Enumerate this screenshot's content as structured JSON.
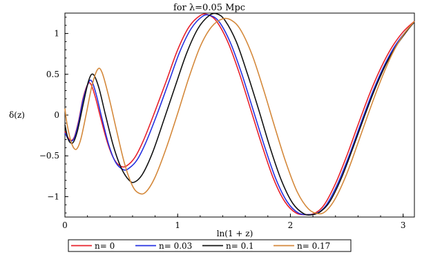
{
  "chart_data": {
    "type": "line",
    "title": "for λ=0.05 Mpc",
    "xlabel": "ln(1 + z)",
    "ylabel": "δ(z)",
    "xlim": [
      0,
      3.1
    ],
    "ylim": [
      -1.25,
      1.25
    ],
    "x_ticks": [
      0,
      1,
      2,
      3
    ],
    "y_ticks": [
      -1,
      -0.5,
      0,
      0.5,
      1
    ],
    "x_tick_labels": [
      "0",
      "1",
      "2",
      "3"
    ],
    "y_tick_labels": [
      "−1",
      "−0.5",
      "0",
      "0.5",
      "1"
    ],
    "grid": false,
    "legend_position": "bottom",
    "series": [
      {
        "name": "n= 0",
        "color": "#e8202a",
        "points": [
          [
            0,
            -0.2
          ],
          [
            0.04,
            -0.3
          ],
          [
            0.08,
            -0.28
          ],
          [
            0.12,
            -0.08
          ],
          [
            0.16,
            0.2
          ],
          [
            0.2,
            0.37
          ],
          [
            0.23,
            0.38
          ],
          [
            0.27,
            0.22
          ],
          [
            0.32,
            -0.05
          ],
          [
            0.38,
            -0.35
          ],
          [
            0.44,
            -0.55
          ],
          [
            0.5,
            -0.63
          ],
          [
            0.55,
            -0.62
          ],
          [
            0.62,
            -0.52
          ],
          [
            0.7,
            -0.3
          ],
          [
            0.8,
            0.05
          ],
          [
            0.9,
            0.42
          ],
          [
            1.0,
            0.8
          ],
          [
            1.1,
            1.08
          ],
          [
            1.2,
            1.22
          ],
          [
            1.27,
            1.23
          ],
          [
            1.35,
            1.14
          ],
          [
            1.45,
            0.88
          ],
          [
            1.55,
            0.5
          ],
          [
            1.65,
            0.06
          ],
          [
            1.75,
            -0.38
          ],
          [
            1.85,
            -0.78
          ],
          [
            1.95,
            -1.06
          ],
          [
            2.05,
            -1.2
          ],
          [
            2.15,
            -1.22
          ],
          [
            2.22,
            -1.2
          ],
          [
            2.3,
            -1.1
          ],
          [
            2.4,
            -0.84
          ],
          [
            2.5,
            -0.5
          ],
          [
            2.6,
            -0.12
          ],
          [
            2.7,
            0.25
          ],
          [
            2.8,
            0.57
          ],
          [
            2.9,
            0.83
          ],
          [
            3.0,
            1.02
          ],
          [
            3.1,
            1.15
          ]
        ]
      },
      {
        "name": "n= 0.03",
        "color": "#2430e0",
        "points": [
          [
            0,
            -0.22
          ],
          [
            0.04,
            -0.31
          ],
          [
            0.08,
            -0.29
          ],
          [
            0.12,
            -0.1
          ],
          [
            0.16,
            0.18
          ],
          [
            0.21,
            0.4
          ],
          [
            0.24,
            0.41
          ],
          [
            0.28,
            0.24
          ],
          [
            0.33,
            -0.05
          ],
          [
            0.39,
            -0.37
          ],
          [
            0.45,
            -0.58
          ],
          [
            0.52,
            -0.67
          ],
          [
            0.57,
            -0.65
          ],
          [
            0.64,
            -0.55
          ],
          [
            0.72,
            -0.33
          ],
          [
            0.82,
            0.02
          ],
          [
            0.92,
            0.4
          ],
          [
            1.02,
            0.78
          ],
          [
            1.12,
            1.06
          ],
          [
            1.22,
            1.21
          ],
          [
            1.29,
            1.22
          ],
          [
            1.37,
            1.14
          ],
          [
            1.47,
            0.88
          ],
          [
            1.57,
            0.5
          ],
          [
            1.67,
            0.06
          ],
          [
            1.77,
            -0.38
          ],
          [
            1.87,
            -0.78
          ],
          [
            1.97,
            -1.06
          ],
          [
            2.07,
            -1.2
          ],
          [
            2.17,
            -1.22
          ],
          [
            2.24,
            -1.2
          ],
          [
            2.32,
            -1.1
          ],
          [
            2.42,
            -0.84
          ],
          [
            2.52,
            -0.5
          ],
          [
            2.62,
            -0.12
          ],
          [
            2.72,
            0.25
          ],
          [
            2.82,
            0.57
          ],
          [
            2.92,
            0.83
          ],
          [
            3.02,
            1.02
          ],
          [
            3.1,
            1.14
          ]
        ]
      },
      {
        "name": "n= 0.1",
        "color": "#111111",
        "points": [
          [
            0,
            -0.12
          ],
          [
            0.03,
            -0.3
          ],
          [
            0.07,
            -0.34
          ],
          [
            0.11,
            -0.2
          ],
          [
            0.16,
            0.12
          ],
          [
            0.21,
            0.42
          ],
          [
            0.25,
            0.5
          ],
          [
            0.3,
            0.34
          ],
          [
            0.36,
            0.0
          ],
          [
            0.43,
            -0.38
          ],
          [
            0.5,
            -0.65
          ],
          [
            0.57,
            -0.8
          ],
          [
            0.62,
            -0.82
          ],
          [
            0.69,
            -0.72
          ],
          [
            0.78,
            -0.45
          ],
          [
            0.88,
            -0.05
          ],
          [
            0.98,
            0.36
          ],
          [
            1.08,
            0.76
          ],
          [
            1.18,
            1.06
          ],
          [
            1.28,
            1.22
          ],
          [
            1.35,
            1.24
          ],
          [
            1.42,
            1.16
          ],
          [
            1.52,
            0.9
          ],
          [
            1.62,
            0.5
          ],
          [
            1.72,
            0.06
          ],
          [
            1.82,
            -0.4
          ],
          [
            1.92,
            -0.8
          ],
          [
            2.02,
            -1.08
          ],
          [
            2.12,
            -1.21
          ],
          [
            2.2,
            -1.22
          ],
          [
            2.27,
            -1.18
          ],
          [
            2.35,
            -1.06
          ],
          [
            2.45,
            -0.78
          ],
          [
            2.55,
            -0.42
          ],
          [
            2.65,
            -0.04
          ],
          [
            2.75,
            0.32
          ],
          [
            2.85,
            0.63
          ],
          [
            2.95,
            0.87
          ],
          [
            3.05,
            1.06
          ],
          [
            3.1,
            1.14
          ]
        ]
      },
      {
        "name": "n= 0.17",
        "color": "#d4883a",
        "points": [
          [
            0,
            0.08
          ],
          [
            0.02,
            -0.12
          ],
          [
            0.06,
            -0.35
          ],
          [
            0.1,
            -0.42
          ],
          [
            0.14,
            -0.3
          ],
          [
            0.19,
            0.02
          ],
          [
            0.24,
            0.36
          ],
          [
            0.29,
            0.56
          ],
          [
            0.33,
            0.52
          ],
          [
            0.39,
            0.22
          ],
          [
            0.46,
            -0.2
          ],
          [
            0.53,
            -0.6
          ],
          [
            0.6,
            -0.87
          ],
          [
            0.66,
            -0.96
          ],
          [
            0.72,
            -0.94
          ],
          [
            0.8,
            -0.76
          ],
          [
            0.9,
            -0.4
          ],
          [
            1.0,
            0.02
          ],
          [
            1.1,
            0.46
          ],
          [
            1.2,
            0.84
          ],
          [
            1.3,
            1.08
          ],
          [
            1.4,
            1.18
          ],
          [
            1.48,
            1.16
          ],
          [
            1.56,
            1.04
          ],
          [
            1.66,
            0.74
          ],
          [
            1.76,
            0.32
          ],
          [
            1.86,
            -0.14
          ],
          [
            1.96,
            -0.58
          ],
          [
            2.06,
            -0.94
          ],
          [
            2.16,
            -1.15
          ],
          [
            2.25,
            -1.21
          ],
          [
            2.32,
            -1.17
          ],
          [
            2.4,
            -1.02
          ],
          [
            2.5,
            -0.72
          ],
          [
            2.6,
            -0.34
          ],
          [
            2.7,
            0.05
          ],
          [
            2.8,
            0.42
          ],
          [
            2.9,
            0.74
          ],
          [
            3.0,
            0.98
          ],
          [
            3.1,
            1.15
          ]
        ]
      }
    ]
  }
}
